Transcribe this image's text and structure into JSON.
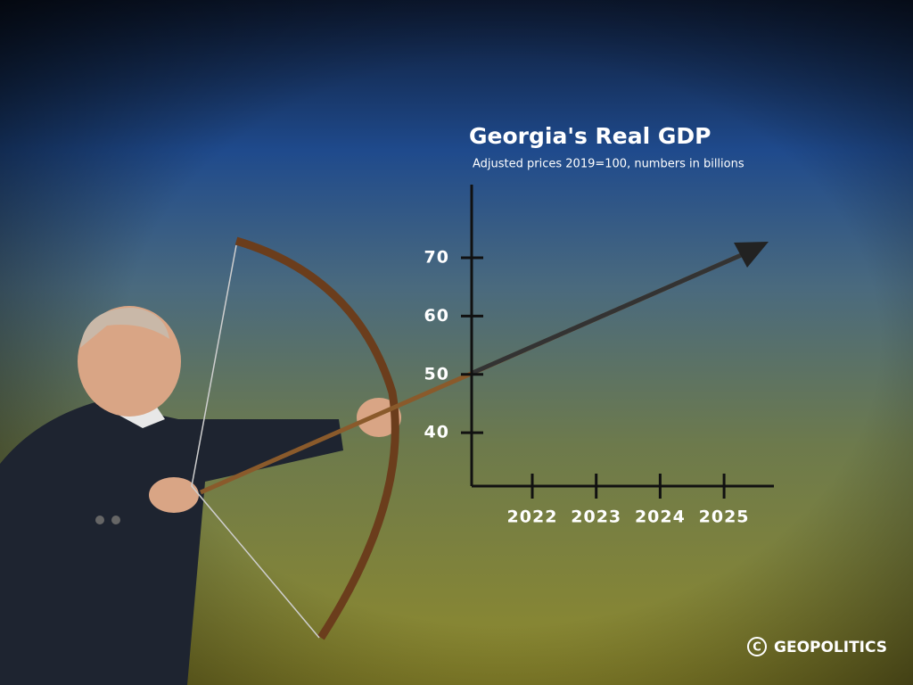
{
  "chart_data": {
    "type": "line",
    "title": "Georgia's Real GDP",
    "subtitle": "Adjusted prices 2019=100, numbers in billions",
    "categories": [
      "2022",
      "2023",
      "2024",
      "2025"
    ],
    "ylim": [
      31,
      83
    ],
    "yticks": [
      40,
      50,
      60,
      70
    ],
    "color": "#111111"
  },
  "credit": "GEOPOLITICS"
}
